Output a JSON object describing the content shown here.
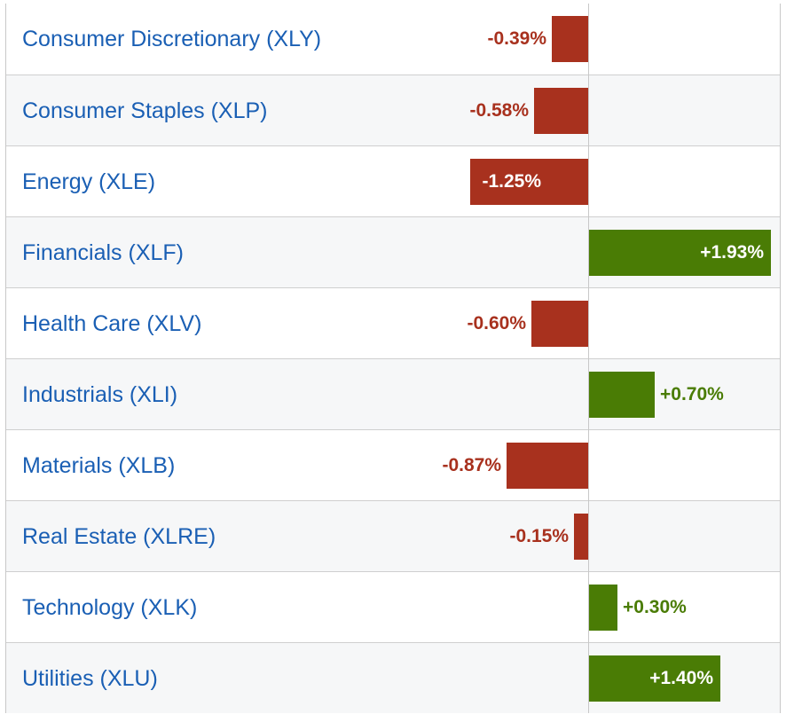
{
  "colors": {
    "negative": "#a8311e",
    "positive": "#4a7c05",
    "label": "#1a5fb4"
  },
  "chart_data": {
    "type": "bar",
    "orientation": "horizontal",
    "unit": "%",
    "grid": false,
    "categories": [
      "Consumer Discretionary (XLY)",
      "Consumer Staples (XLP)",
      "Energy (XLE)",
      "Financials (XLF)",
      "Health Care (XLV)",
      "Industrials (XLI)",
      "Materials (XLB)",
      "Real Estate (XLRE)",
      "Technology (XLK)",
      "Utilities (XLU)"
    ],
    "values": [
      -0.39,
      -0.58,
      -1.25,
      1.93,
      -0.6,
      0.7,
      -0.87,
      -0.15,
      0.3,
      1.4
    ],
    "value_labels": [
      "-0.39%",
      "-0.58%",
      "-1.25%",
      "+1.93%",
      "-0.60%",
      "+0.70%",
      "-0.87%",
      "-0.15%",
      "+0.30%",
      "+1.40%"
    ]
  }
}
